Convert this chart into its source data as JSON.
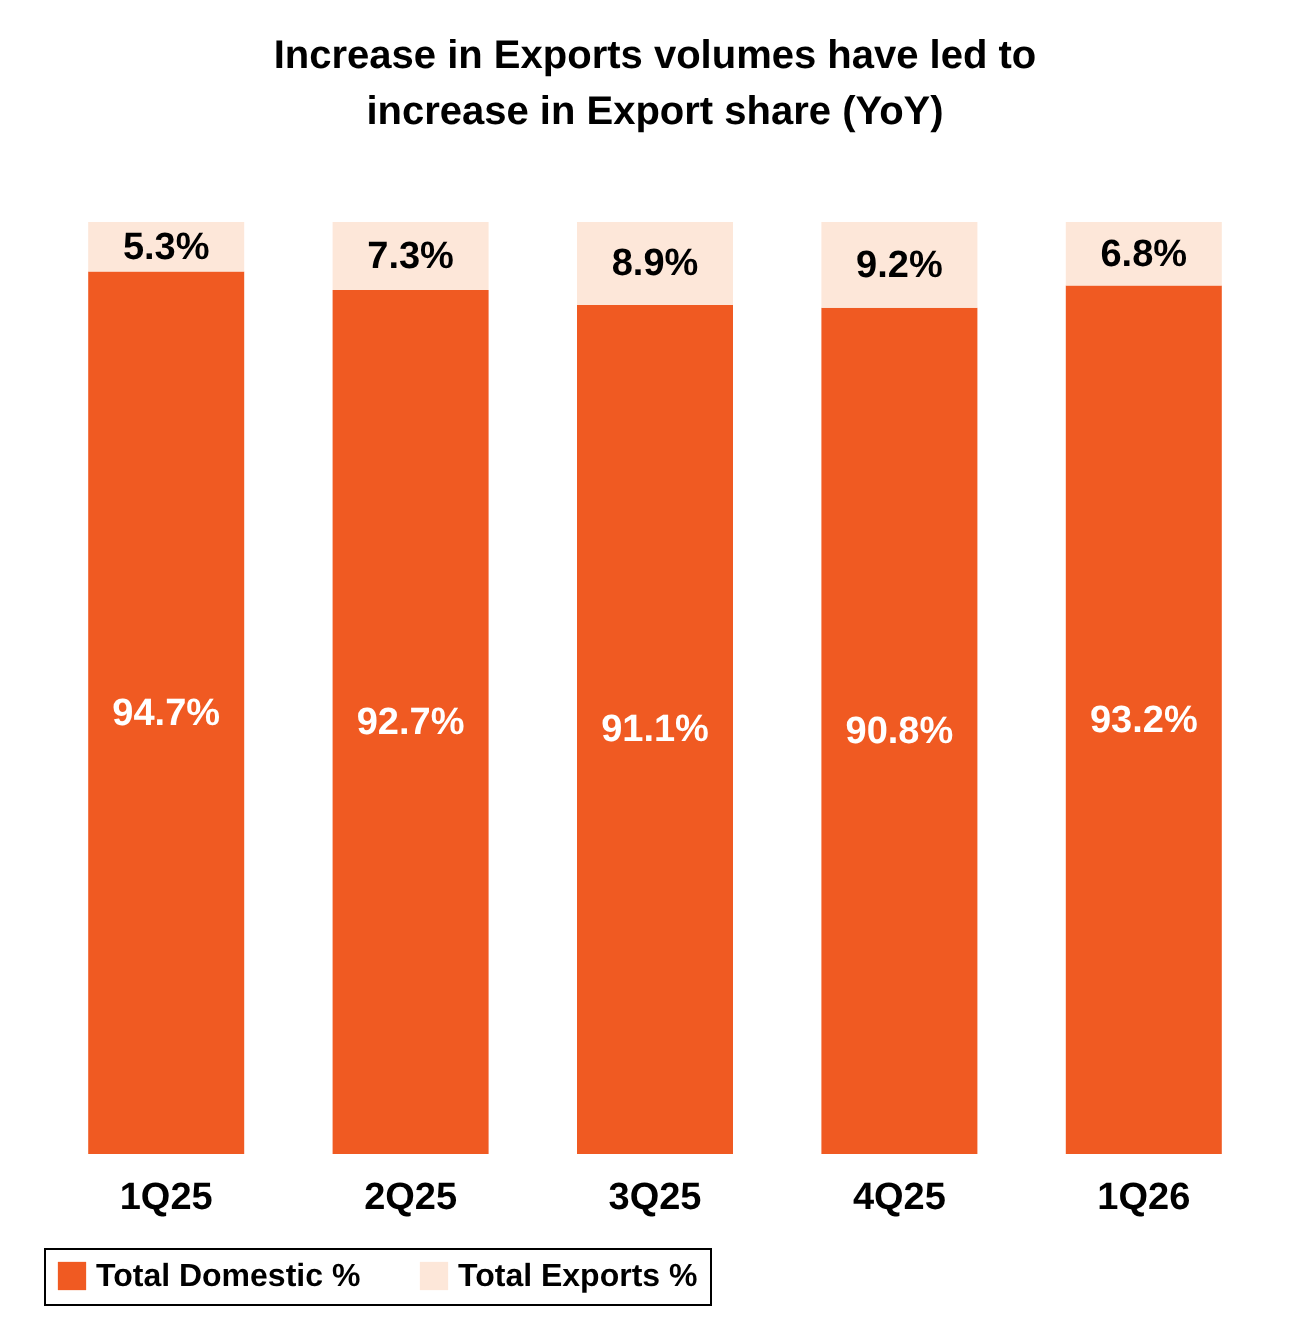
{
  "chart_data": {
    "type": "bar",
    "title": "Increase in Exports volumes have led to increase in Export share (YoY)",
    "categories": [
      "1Q25",
      "2Q25",
      "3Q25",
      "4Q25",
      "1Q26"
    ],
    "stacked": true,
    "tick_labels": "x",
    "legend": "bottom",
    "series": [
      {
        "name": "Total Domestic %",
        "color": "#f05a22",
        "values": [
          94.7,
          92.7,
          91.1,
          90.8,
          93.2
        ],
        "value_labels": [
          "94.7%",
          "92.7%",
          "91.1%",
          "90.8%",
          "93.2%"
        ]
      },
      {
        "name": "Total Exports %",
        "color": "#fde7d9",
        "values": [
          5.3,
          7.3,
          8.9,
          9.2,
          6.8
        ],
        "value_labels": [
          "5.3%",
          "7.3%",
          "8.9%",
          "9.2%",
          "6.8%"
        ]
      }
    ]
  }
}
